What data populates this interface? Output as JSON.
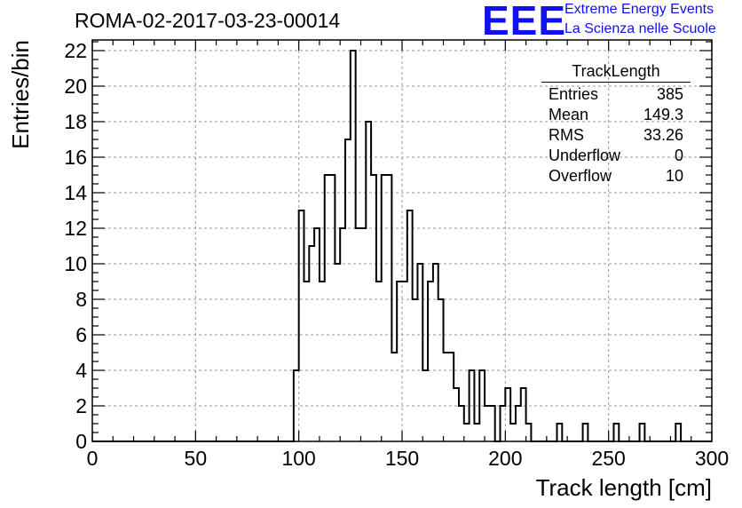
{
  "header": {
    "run_title": "ROMA-02-2017-03-23-00014",
    "logo_text": "EEE",
    "logo_line1": "Extreme Energy Events",
    "logo_line2": "La Scienza nelle Scuole",
    "logo_color": "#1010ee"
  },
  "stats": {
    "title": "TrackLength",
    "rows": [
      {
        "label": "Entries",
        "value": "385"
      },
      {
        "label": "Mean",
        "value": "149.3"
      },
      {
        "label": "RMS",
        "value": "33.26"
      },
      {
        "label": "Underflow",
        "value": "0"
      },
      {
        "label": "Overflow",
        "value": "10"
      }
    ]
  },
  "chart_data": {
    "type": "bar",
    "histogram": true,
    "xlabel": "Track length [cm]",
    "ylabel": "Entries/bin",
    "xlim": [
      0,
      300
    ],
    "ylim": [
      0,
      22.6
    ],
    "grid": true,
    "bin_width": 2.5,
    "x_ticks": [
      0,
      50,
      100,
      150,
      200,
      250,
      300
    ],
    "y_ticks": [
      0,
      2,
      4,
      6,
      8,
      10,
      12,
      14,
      16,
      18,
      20,
      22
    ],
    "bins": [
      {
        "x": 97.5,
        "y": 4
      },
      {
        "x": 100,
        "y": 13
      },
      {
        "x": 102.5,
        "y": 9
      },
      {
        "x": 105,
        "y": 11
      },
      {
        "x": 107.5,
        "y": 12
      },
      {
        "x": 110,
        "y": 9
      },
      {
        "x": 112.5,
        "y": 15
      },
      {
        "x": 115,
        "y": 15
      },
      {
        "x": 117.5,
        "y": 10
      },
      {
        "x": 120,
        "y": 12
      },
      {
        "x": 122.5,
        "y": 17
      },
      {
        "x": 125,
        "y": 22
      },
      {
        "x": 127.5,
        "y": 12
      },
      {
        "x": 130,
        "y": 12
      },
      {
        "x": 132.5,
        "y": 18
      },
      {
        "x": 135,
        "y": 15
      },
      {
        "x": 137.5,
        "y": 9
      },
      {
        "x": 140,
        "y": 15
      },
      {
        "x": 142.5,
        "y": 15
      },
      {
        "x": 145,
        "y": 5
      },
      {
        "x": 147.5,
        "y": 9
      },
      {
        "x": 150,
        "y": 9
      },
      {
        "x": 152.5,
        "y": 13
      },
      {
        "x": 155,
        "y": 8
      },
      {
        "x": 157.5,
        "y": 10
      },
      {
        "x": 160,
        "y": 4
      },
      {
        "x": 162.5,
        "y": 9
      },
      {
        "x": 165,
        "y": 10
      },
      {
        "x": 167.5,
        "y": 8
      },
      {
        "x": 170,
        "y": 5
      },
      {
        "x": 172.5,
        "y": 5
      },
      {
        "x": 175,
        "y": 3
      },
      {
        "x": 177.5,
        "y": 2
      },
      {
        "x": 180,
        "y": 1
      },
      {
        "x": 182.5,
        "y": 4
      },
      {
        "x": 185,
        "y": 1
      },
      {
        "x": 187.5,
        "y": 4
      },
      {
        "x": 190,
        "y": 2
      },
      {
        "x": 192.5,
        "y": 2
      },
      {
        "x": 195,
        "y": 0
      },
      {
        "x": 197.5,
        "y": 2
      },
      {
        "x": 200,
        "y": 3
      },
      {
        "x": 202.5,
        "y": 1
      },
      {
        "x": 205,
        "y": 2
      },
      {
        "x": 207.5,
        "y": 3
      },
      {
        "x": 210,
        "y": 1
      },
      {
        "x": 212.5,
        "y": 0
      },
      {
        "x": 215,
        "y": 0
      },
      {
        "x": 217.5,
        "y": 0
      },
      {
        "x": 220,
        "y": 0
      },
      {
        "x": 222.5,
        "y": 0
      },
      {
        "x": 225,
        "y": 1
      },
      {
        "x": 227.5,
        "y": 0
      },
      {
        "x": 230,
        "y": 0
      },
      {
        "x": 232.5,
        "y": 0
      },
      {
        "x": 235,
        "y": 0
      },
      {
        "x": 237.5,
        "y": 1
      },
      {
        "x": 240,
        "y": 0
      },
      {
        "x": 242.5,
        "y": 0
      },
      {
        "x": 245,
        "y": 0
      },
      {
        "x": 247.5,
        "y": 0
      },
      {
        "x": 250,
        "y": 0
      },
      {
        "x": 252.5,
        "y": 1
      },
      {
        "x": 255,
        "y": 0
      },
      {
        "x": 257.5,
        "y": 0
      },
      {
        "x": 260,
        "y": 0
      },
      {
        "x": 262.5,
        "y": 0
      },
      {
        "x": 265,
        "y": 1
      },
      {
        "x": 267.5,
        "y": 0
      },
      {
        "x": 270,
        "y": 0
      },
      {
        "x": 272.5,
        "y": 0
      },
      {
        "x": 275,
        "y": 0
      },
      {
        "x": 277.5,
        "y": 0
      },
      {
        "x": 280,
        "y": 0
      },
      {
        "x": 282.5,
        "y": 1
      },
      {
        "x": 285,
        "y": 0
      }
    ]
  }
}
